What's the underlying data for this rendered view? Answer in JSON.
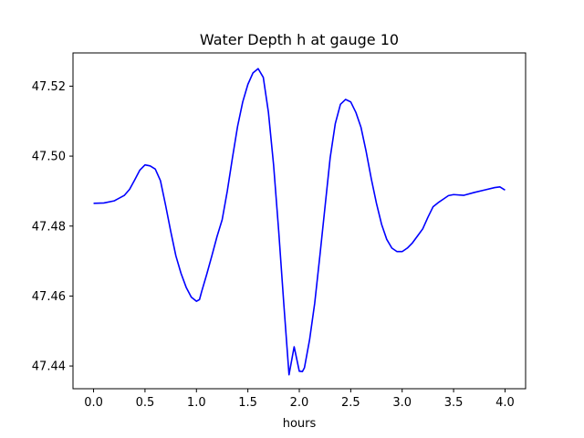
{
  "chart_data": {
    "type": "line",
    "title": "Water Depth h at gauge 10",
    "xlabel": "hours",
    "ylabel": "",
    "xlim": [
      -0.2,
      4.2
    ],
    "ylim": [
      47.4335,
      47.5295
    ],
    "x_ticks": [
      0.0,
      0.5,
      1.0,
      1.5,
      2.0,
      2.5,
      3.0,
      3.5,
      4.0
    ],
    "x_tick_labels": [
      "0.0",
      "0.5",
      "1.0",
      "1.5",
      "2.0",
      "2.5",
      "3.0",
      "3.5",
      "4.0"
    ],
    "y_ticks": [
      47.44,
      47.46,
      47.48,
      47.5,
      47.52
    ],
    "y_tick_labels": [
      "47.44",
      "47.46",
      "47.48",
      "47.50",
      "47.52"
    ],
    "grid": false,
    "series": [
      {
        "color": "#0000ff",
        "x": [
          0.0,
          0.1,
          0.2,
          0.3,
          0.35,
          0.4,
          0.45,
          0.5,
          0.55,
          0.6,
          0.65,
          0.7,
          0.75,
          0.8,
          0.85,
          0.9,
          0.95,
          1.0,
          1.03,
          1.05,
          1.1,
          1.15,
          1.2,
          1.25,
          1.3,
          1.35,
          1.4,
          1.45,
          1.5,
          1.55,
          1.6,
          1.65,
          1.7,
          1.75,
          1.8,
          1.85,
          1.9,
          1.95,
          2.0,
          2.03,
          2.05,
          2.1,
          2.15,
          2.2,
          2.25,
          2.3,
          2.35,
          2.4,
          2.45,
          2.5,
          2.55,
          2.6,
          2.65,
          2.7,
          2.75,
          2.8,
          2.85,
          2.9,
          2.95,
          3.0,
          3.05,
          3.1,
          3.15,
          3.2,
          3.25,
          3.3,
          3.35,
          3.4,
          3.45,
          3.5,
          3.6,
          3.7,
          3.8,
          3.9,
          3.95,
          4.0
        ],
        "y": [
          47.4865,
          47.4866,
          47.4872,
          47.4888,
          47.4905,
          47.4932,
          47.496,
          47.4975,
          47.4972,
          47.4963,
          47.493,
          47.486,
          47.4785,
          47.4715,
          47.4665,
          47.4625,
          47.4597,
          47.4585,
          47.459,
          47.4612,
          47.4662,
          47.4715,
          47.477,
          47.4818,
          47.49,
          47.4995,
          47.5085,
          47.5155,
          47.5205,
          47.5238,
          47.525,
          47.5225,
          47.5125,
          47.4975,
          47.4785,
          47.4575,
          47.4375,
          47.4455,
          47.4385,
          47.4384,
          47.4395,
          47.4475,
          47.458,
          47.4715,
          47.4855,
          47.4995,
          47.5093,
          47.5148,
          47.5162,
          47.5155,
          47.5125,
          47.5082,
          47.5013,
          47.4935,
          47.4865,
          47.4805,
          47.4762,
          47.4737,
          47.4727,
          47.4727,
          47.4737,
          47.4752,
          47.4772,
          47.4792,
          47.4825,
          47.4855,
          47.4867,
          47.4877,
          47.4887,
          47.489,
          47.4888,
          47.4896,
          47.4903,
          47.491,
          47.4912,
          47.4903
        ]
      }
    ]
  }
}
